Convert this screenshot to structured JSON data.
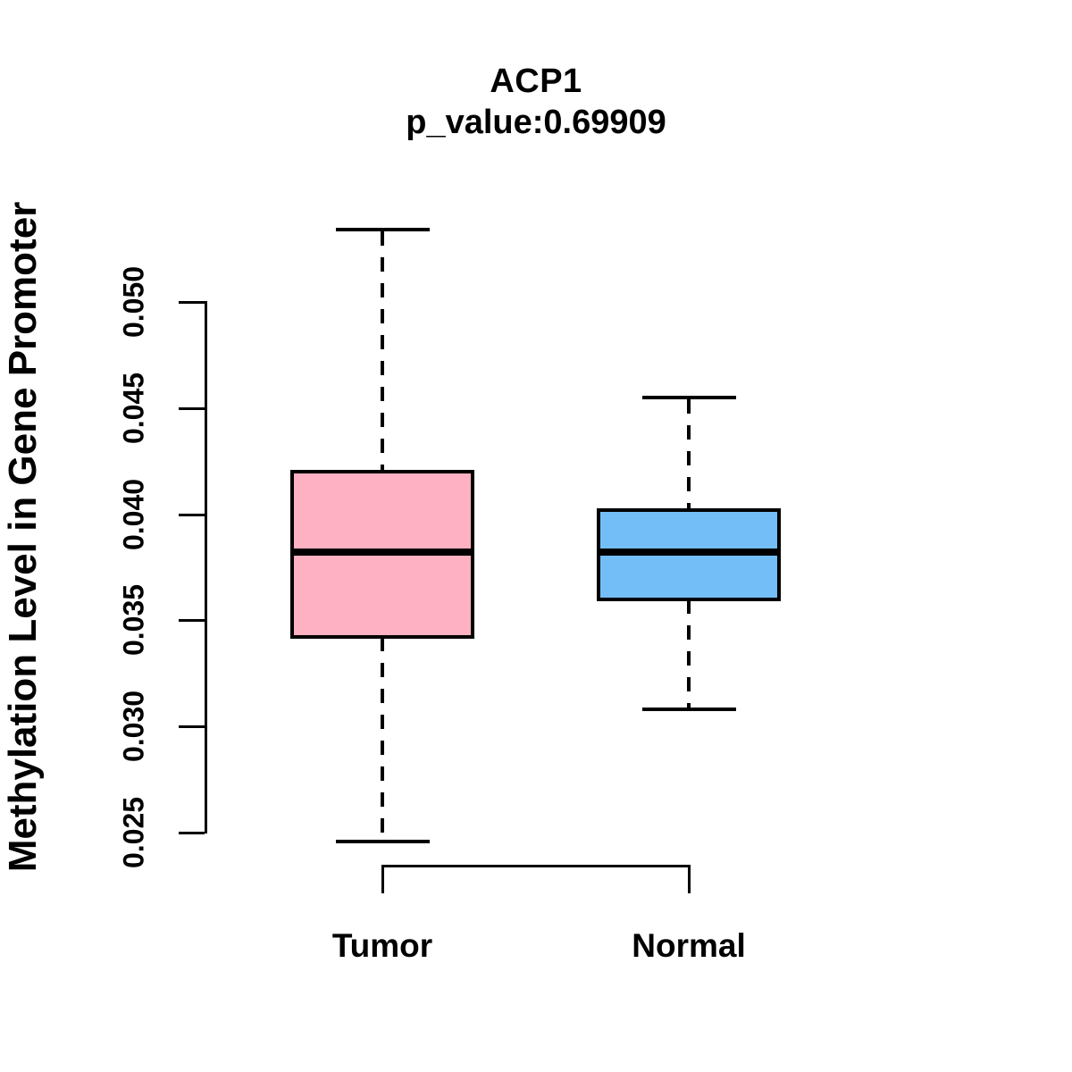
{
  "title": "ACP1",
  "subtitle": "p_value:0.69909",
  "ylabel": "Methylation Level in Gene Promoter",
  "colors": {
    "tumor_fill": "#FFB1C4",
    "normal_fill": "#74BEF8",
    "stroke": "#000000",
    "background": "#FFFFFF"
  },
  "chart_data": {
    "type": "boxplot",
    "title": "ACP1",
    "subtitle": "p_value:0.69909",
    "ylabel": "Methylation Level in Gene Promoter",
    "xlabel": "",
    "categories": [
      "Tumor",
      "Normal"
    ],
    "series": [
      {
        "name": "Tumor",
        "lower_whisker": 0.0246,
        "q1": 0.0342,
        "median": 0.0382,
        "q3": 0.042,
        "upper_whisker": 0.0534,
        "fill": "#FFB1C4"
      },
      {
        "name": "Normal",
        "lower_whisker": 0.0308,
        "q1": 0.036,
        "median": 0.0382,
        "q3": 0.0402,
        "upper_whisker": 0.0455,
        "fill": "#74BEF8"
      }
    ],
    "y_ticks": [
      "0.025",
      "0.030",
      "0.035",
      "0.040",
      "0.045",
      "0.050"
    ],
    "ylim": [
      0.025,
      0.05
    ],
    "grid": false,
    "legend": "none",
    "whisker_style": "dashed"
  }
}
